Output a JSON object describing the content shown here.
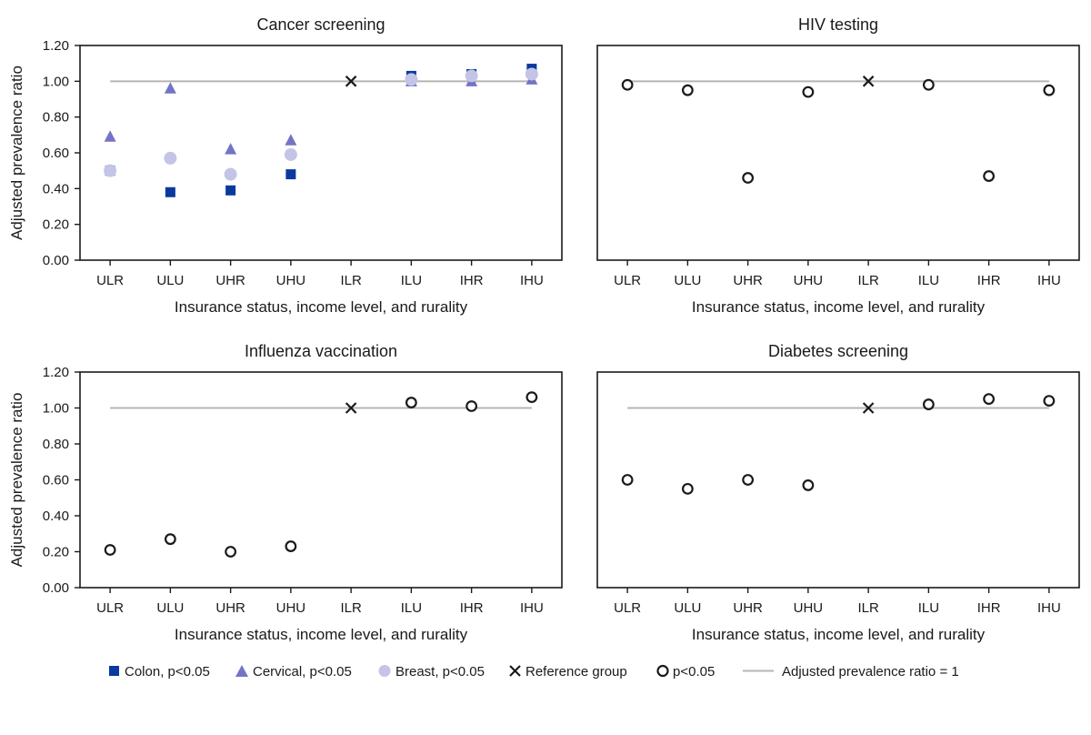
{
  "figure": {
    "ylabel": "Adjusted prevalence ratio",
    "xlabel": "Insurance status, income level, and rurality"
  },
  "colors": {
    "colon": "#0a3a9e",
    "cervical": "#7474c6",
    "breast": "#c4c4e6",
    "reference_line": "#b5b5b5",
    "marker": "#1a1a1a"
  },
  "legend": {
    "colon": "Colon, p<0.05",
    "cervical": "Cervical, p<0.05",
    "breast": "Breast, p<0.05",
    "reference": "Reference group",
    "p05": "p<0.05",
    "line": "Adjusted prevalence ratio = 1"
  },
  "chart_data": [
    {
      "type": "scatter",
      "title": "Cancer screening",
      "categories": [
        "ULR",
        "ULU",
        "UHR",
        "UHU",
        "ILR",
        "ILU",
        "IHR",
        "IHU"
      ],
      "ylim": [
        0,
        1.2
      ],
      "yticks": [
        "0.00",
        "0.20",
        "0.40",
        "0.60",
        "0.80",
        "1.00",
        "1.20"
      ],
      "reference_line": 1.0,
      "reference_category": "ILR",
      "series": [
        {
          "name": "Colon",
          "marker": "square",
          "values": [
            0.5,
            0.38,
            0.39,
            0.48,
            null,
            1.03,
            1.04,
            1.07
          ]
        },
        {
          "name": "Cervical",
          "marker": "triangle",
          "values": [
            0.69,
            0.96,
            0.62,
            0.67,
            null,
            1.0,
            1.0,
            1.01
          ]
        },
        {
          "name": "Breast",
          "marker": "circle-filled",
          "values": [
            0.5,
            0.57,
            0.48,
            0.59,
            null,
            1.01,
            1.03,
            1.04
          ]
        }
      ]
    },
    {
      "type": "scatter",
      "title": "HIV testing",
      "categories": [
        "ULR",
        "ULU",
        "UHR",
        "UHU",
        "ILR",
        "ILU",
        "IHR",
        "IHU"
      ],
      "ylim": [
        0,
        1.2
      ],
      "yticks": [
        "0.00",
        "0.20",
        "0.40",
        "0.60",
        "0.80",
        "1.00",
        "1.20"
      ],
      "reference_line": 1.0,
      "reference_category": "ILR",
      "series": [
        {
          "name": "p<0.05",
          "marker": "circle-open",
          "values": [
            0.98,
            0.95,
            0.46,
            0.94,
            null,
            0.98,
            0.47,
            0.95
          ]
        }
      ]
    },
    {
      "type": "scatter",
      "title": "Influenza vaccination",
      "categories": [
        "ULR",
        "ULU",
        "UHR",
        "UHU",
        "ILR",
        "ILU",
        "IHR",
        "IHU"
      ],
      "ylim": [
        0,
        1.2
      ],
      "yticks": [
        "0.00",
        "0.20",
        "0.40",
        "0.60",
        "0.80",
        "1.00",
        "1.20"
      ],
      "reference_line": 1.0,
      "reference_category": "ILR",
      "series": [
        {
          "name": "p<0.05",
          "marker": "circle-open",
          "values": [
            0.21,
            0.27,
            0.2,
            0.23,
            null,
            1.03,
            1.01,
            1.06
          ]
        }
      ]
    },
    {
      "type": "scatter",
      "title": "Diabetes screening",
      "categories": [
        "ULR",
        "ULU",
        "UHR",
        "UHU",
        "ILR",
        "ILU",
        "IHR",
        "IHU"
      ],
      "ylim": [
        0,
        1.2
      ],
      "yticks": [
        "0.00",
        "0.20",
        "0.40",
        "0.60",
        "0.80",
        "1.00",
        "1.20"
      ],
      "reference_line": 1.0,
      "reference_category": "ILR",
      "series": [
        {
          "name": "p<0.05",
          "marker": "circle-open",
          "values": [
            0.6,
            0.55,
            0.6,
            0.57,
            null,
            1.02,
            1.05,
            1.04
          ]
        }
      ]
    }
  ]
}
